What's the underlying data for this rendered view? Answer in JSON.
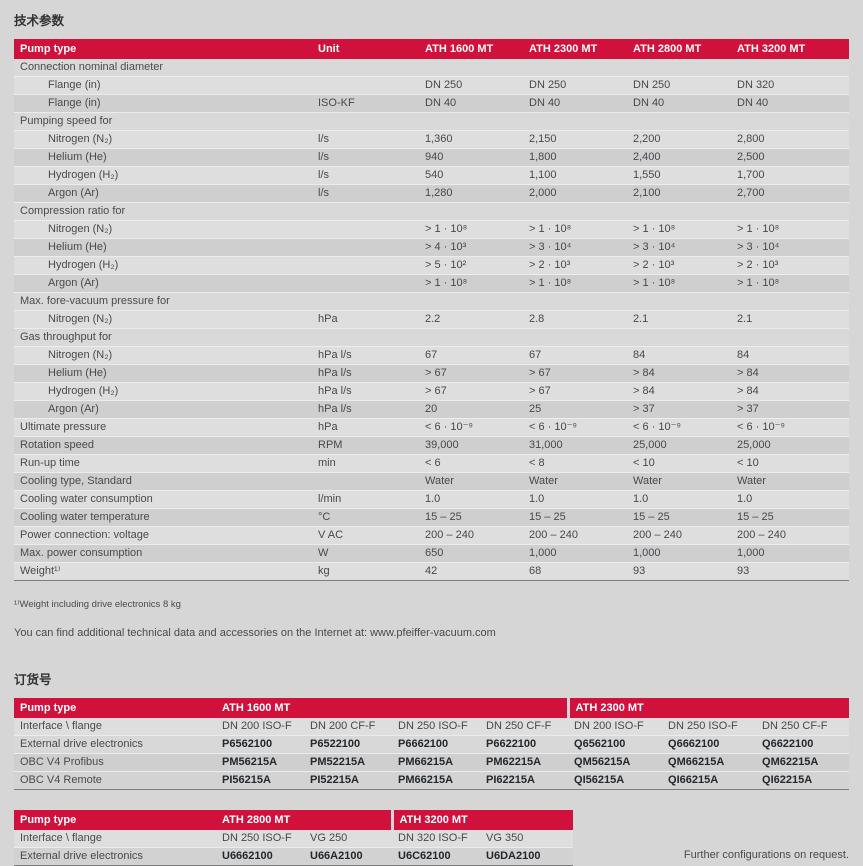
{
  "colors": {
    "accent_red": "#d0113b",
    "page_background": "#d6d6d6",
    "row_light": "#dedede",
    "row_dark": "#cfcfcf"
  },
  "tech_section": {
    "title": "技术参数",
    "table": {
      "header": [
        "Pump type",
        "Unit",
        "ATH 1600 MT",
        "ATH 2300 MT",
        "ATH 2800 MT",
        "ATH 3200 MT"
      ],
      "rows": [
        {
          "type": "section",
          "label": "Connection nominal diameter"
        },
        {
          "type": "data",
          "indent": true,
          "label": "Flange (in)",
          "unit": "",
          "values": [
            "DN 250",
            "DN 250",
            "DN 250",
            "DN 320"
          ]
        },
        {
          "type": "data",
          "indent": true,
          "label": "Flange (in)",
          "unit": "ISO-KF",
          "values": [
            "DN 40",
            "DN 40",
            "DN 40",
            "DN 40"
          ]
        },
        {
          "type": "section",
          "label": "Pumping speed for"
        },
        {
          "type": "data",
          "indent": true,
          "label": "Nitrogen (N₂)",
          "unit": "l/s",
          "values": [
            "1,360",
            "2,150",
            "2,200",
            "2,800"
          ]
        },
        {
          "type": "data",
          "indent": true,
          "label": "Helium (He)",
          "unit": "l/s",
          "values": [
            "940",
            "1,800",
            "2,400",
            "2,500"
          ]
        },
        {
          "type": "data",
          "indent": true,
          "label": "Hydrogen (H₂)",
          "unit": "l/s",
          "values": [
            "540",
            "1,100",
            "1,550",
            "1,700"
          ]
        },
        {
          "type": "data",
          "indent": true,
          "label": "Argon (Ar)",
          "unit": "l/s",
          "values": [
            "1,280",
            "2,000",
            "2,100",
            "2,700"
          ]
        },
        {
          "type": "section",
          "label": "Compression ratio for"
        },
        {
          "type": "data",
          "indent": true,
          "label": "Nitrogen (N₂)",
          "unit": "",
          "values": [
            "> 1 · 10⁸",
            "> 1 · 10⁸",
            "> 1 · 10⁸",
            "> 1 · 10⁸"
          ]
        },
        {
          "type": "data",
          "indent": true,
          "label": "Helium (He)",
          "unit": "",
          "values": [
            "> 4 · 10³",
            "> 3 · 10⁴",
            "> 3 · 10⁴",
            "> 3 · 10⁴"
          ]
        },
        {
          "type": "data",
          "indent": true,
          "label": "Hydrogen (H₂)",
          "unit": "",
          "values": [
            "> 5 · 10²",
            "> 2 · 10³",
            "> 2 · 10³",
            "> 2 · 10³"
          ]
        },
        {
          "type": "data",
          "indent": true,
          "label": "Argon (Ar)",
          "unit": "",
          "values": [
            "> 1 · 10⁸",
            "> 1 · 10⁸",
            "> 1 · 10⁸",
            "> 1 · 10⁸"
          ]
        },
        {
          "type": "section",
          "label": "Max. fore-vacuum pressure for"
        },
        {
          "type": "data",
          "indent": true,
          "label": "Nitrogen (N₂)",
          "unit": "hPa",
          "values": [
            "2.2",
            "2.8",
            "2.1",
            "2.1"
          ]
        },
        {
          "type": "section",
          "label": "Gas throughput for"
        },
        {
          "type": "data",
          "indent": true,
          "label": "Nitrogen (N₂)",
          "unit": "hPa l/s",
          "values": [
            "67",
            "67",
            "84",
            "84"
          ]
        },
        {
          "type": "data",
          "indent": true,
          "label": "Helium (He)",
          "unit": "hPa l/s",
          "values": [
            "> 67",
            "> 67",
            "> 84",
            "> 84"
          ]
        },
        {
          "type": "data",
          "indent": true,
          "label": "Hydrogen (H₂)",
          "unit": "hPa l/s",
          "values": [
            "> 67",
            "> 67",
            "> 84",
            "> 84"
          ]
        },
        {
          "type": "data",
          "indent": true,
          "label": "Argon (Ar)",
          "unit": "hPa l/s",
          "values": [
            "20",
            "25",
            "> 37",
            "> 37"
          ]
        },
        {
          "type": "data",
          "indent": false,
          "label": "Ultimate pressure",
          "unit": "hPa",
          "values": [
            "< 6 · 10⁻⁹",
            "< 6 · 10⁻⁹",
            "< 6 · 10⁻⁹",
            "< 6 · 10⁻⁹"
          ]
        },
        {
          "type": "data",
          "indent": false,
          "label": "Rotation speed",
          "unit": "RPM",
          "values": [
            "39,000",
            "31,000",
            "25,000",
            "25,000"
          ]
        },
        {
          "type": "data",
          "indent": false,
          "label": "Run-up time",
          "unit": "min",
          "values": [
            "< 6",
            "< 8",
            "< 10",
            "< 10"
          ]
        },
        {
          "type": "data",
          "indent": false,
          "label": "Cooling type, Standard",
          "unit": "",
          "values": [
            "Water",
            "Water",
            "Water",
            "Water"
          ]
        },
        {
          "type": "data",
          "indent": false,
          "label": "Cooling water consumption",
          "unit": "l/min",
          "values": [
            "1.0",
            "1.0",
            "1.0",
            "1.0"
          ]
        },
        {
          "type": "data",
          "indent": false,
          "label": "Cooling water temperature",
          "unit": "°C",
          "values": [
            "15 – 25",
            "15 – 25",
            "15 – 25",
            "15 – 25"
          ]
        },
        {
          "type": "data",
          "indent": false,
          "label": "Power connection: voltage",
          "unit": "V AC",
          "values": [
            "200 – 240",
            "200 – 240",
            "200 – 240",
            "200 – 240"
          ]
        },
        {
          "type": "data",
          "indent": false,
          "label": "Max. power consumption",
          "unit": "W",
          "values": [
            "650",
            "1,000",
            "1,000",
            "1,000"
          ]
        },
        {
          "type": "data",
          "indent": false,
          "label": "Weight¹⁾",
          "unit": "kg",
          "values": [
            "42",
            "68",
            "93",
            "93"
          ]
        }
      ]
    },
    "footnote": "¹⁾Weight including drive electronics 8 kg",
    "internet_note": "You can find additional technical data and accessories on the Internet at: www.pfeiffer-vacuum.com"
  },
  "order_section": {
    "title": "订货号",
    "table1": {
      "label_header": "Pump type",
      "groups": [
        {
          "label": "ATH 1600 MT",
          "cols": 4
        },
        {
          "label": "ATH 2300 MT",
          "cols": 3
        }
      ],
      "rows": [
        {
          "label": "Interface \\ flange",
          "bold": false,
          "values": [
            "DN 200 ISO-F",
            "DN 200 CF-F",
            "DN 250 ISO-F",
            "DN 250 CF-F",
            "DN 200 ISO-F",
            "DN 250 ISO-F",
            "DN 250 CF-F"
          ]
        },
        {
          "label": "External drive electronics",
          "bold": true,
          "values": [
            "P6562100",
            "P6522100",
            "P6662100",
            "P6622100",
            "Q6562100",
            "Q6662100",
            "Q6622100"
          ]
        },
        {
          "label": "OBC V4 Profibus",
          "bold": true,
          "values": [
            "PM56215A",
            "PM52215A",
            "PM66215A",
            "PM62215A",
            "QM56215A",
            "QM66215A",
            "QM62215A"
          ]
        },
        {
          "label": "OBC V4 Remote",
          "bold": true,
          "values": [
            "PI56215A",
            "PI52215A",
            "PM66215A",
            "PI62215A",
            "QI56215A",
            "QI66215A",
            "QI62215A"
          ]
        }
      ],
      "row_shades": [
        "#dedede",
        "#d8d8d8",
        "#cfcfcf",
        "#d3d3d3"
      ]
    },
    "table2": {
      "label_header": "Pump type",
      "groups": [
        {
          "label": "ATH 2800 MT",
          "cols": 2
        },
        {
          "label": "ATH 3200 MT",
          "cols": 2
        }
      ],
      "rows": [
        {
          "label": "Interface \\ flange",
          "bold": false,
          "values": [
            "DN 250 ISO-F",
            "VG 250",
            "DN 320 ISO-F",
            "VG 350"
          ]
        },
        {
          "label": "External drive electronics",
          "bold": true,
          "values": [
            "U6662100",
            "U66A2100",
            "U6C62100",
            "U6DA2100"
          ]
        }
      ],
      "row_shades": [
        "#dedede",
        "#d2d2d2"
      ]
    },
    "note": "Further configurations on request."
  }
}
